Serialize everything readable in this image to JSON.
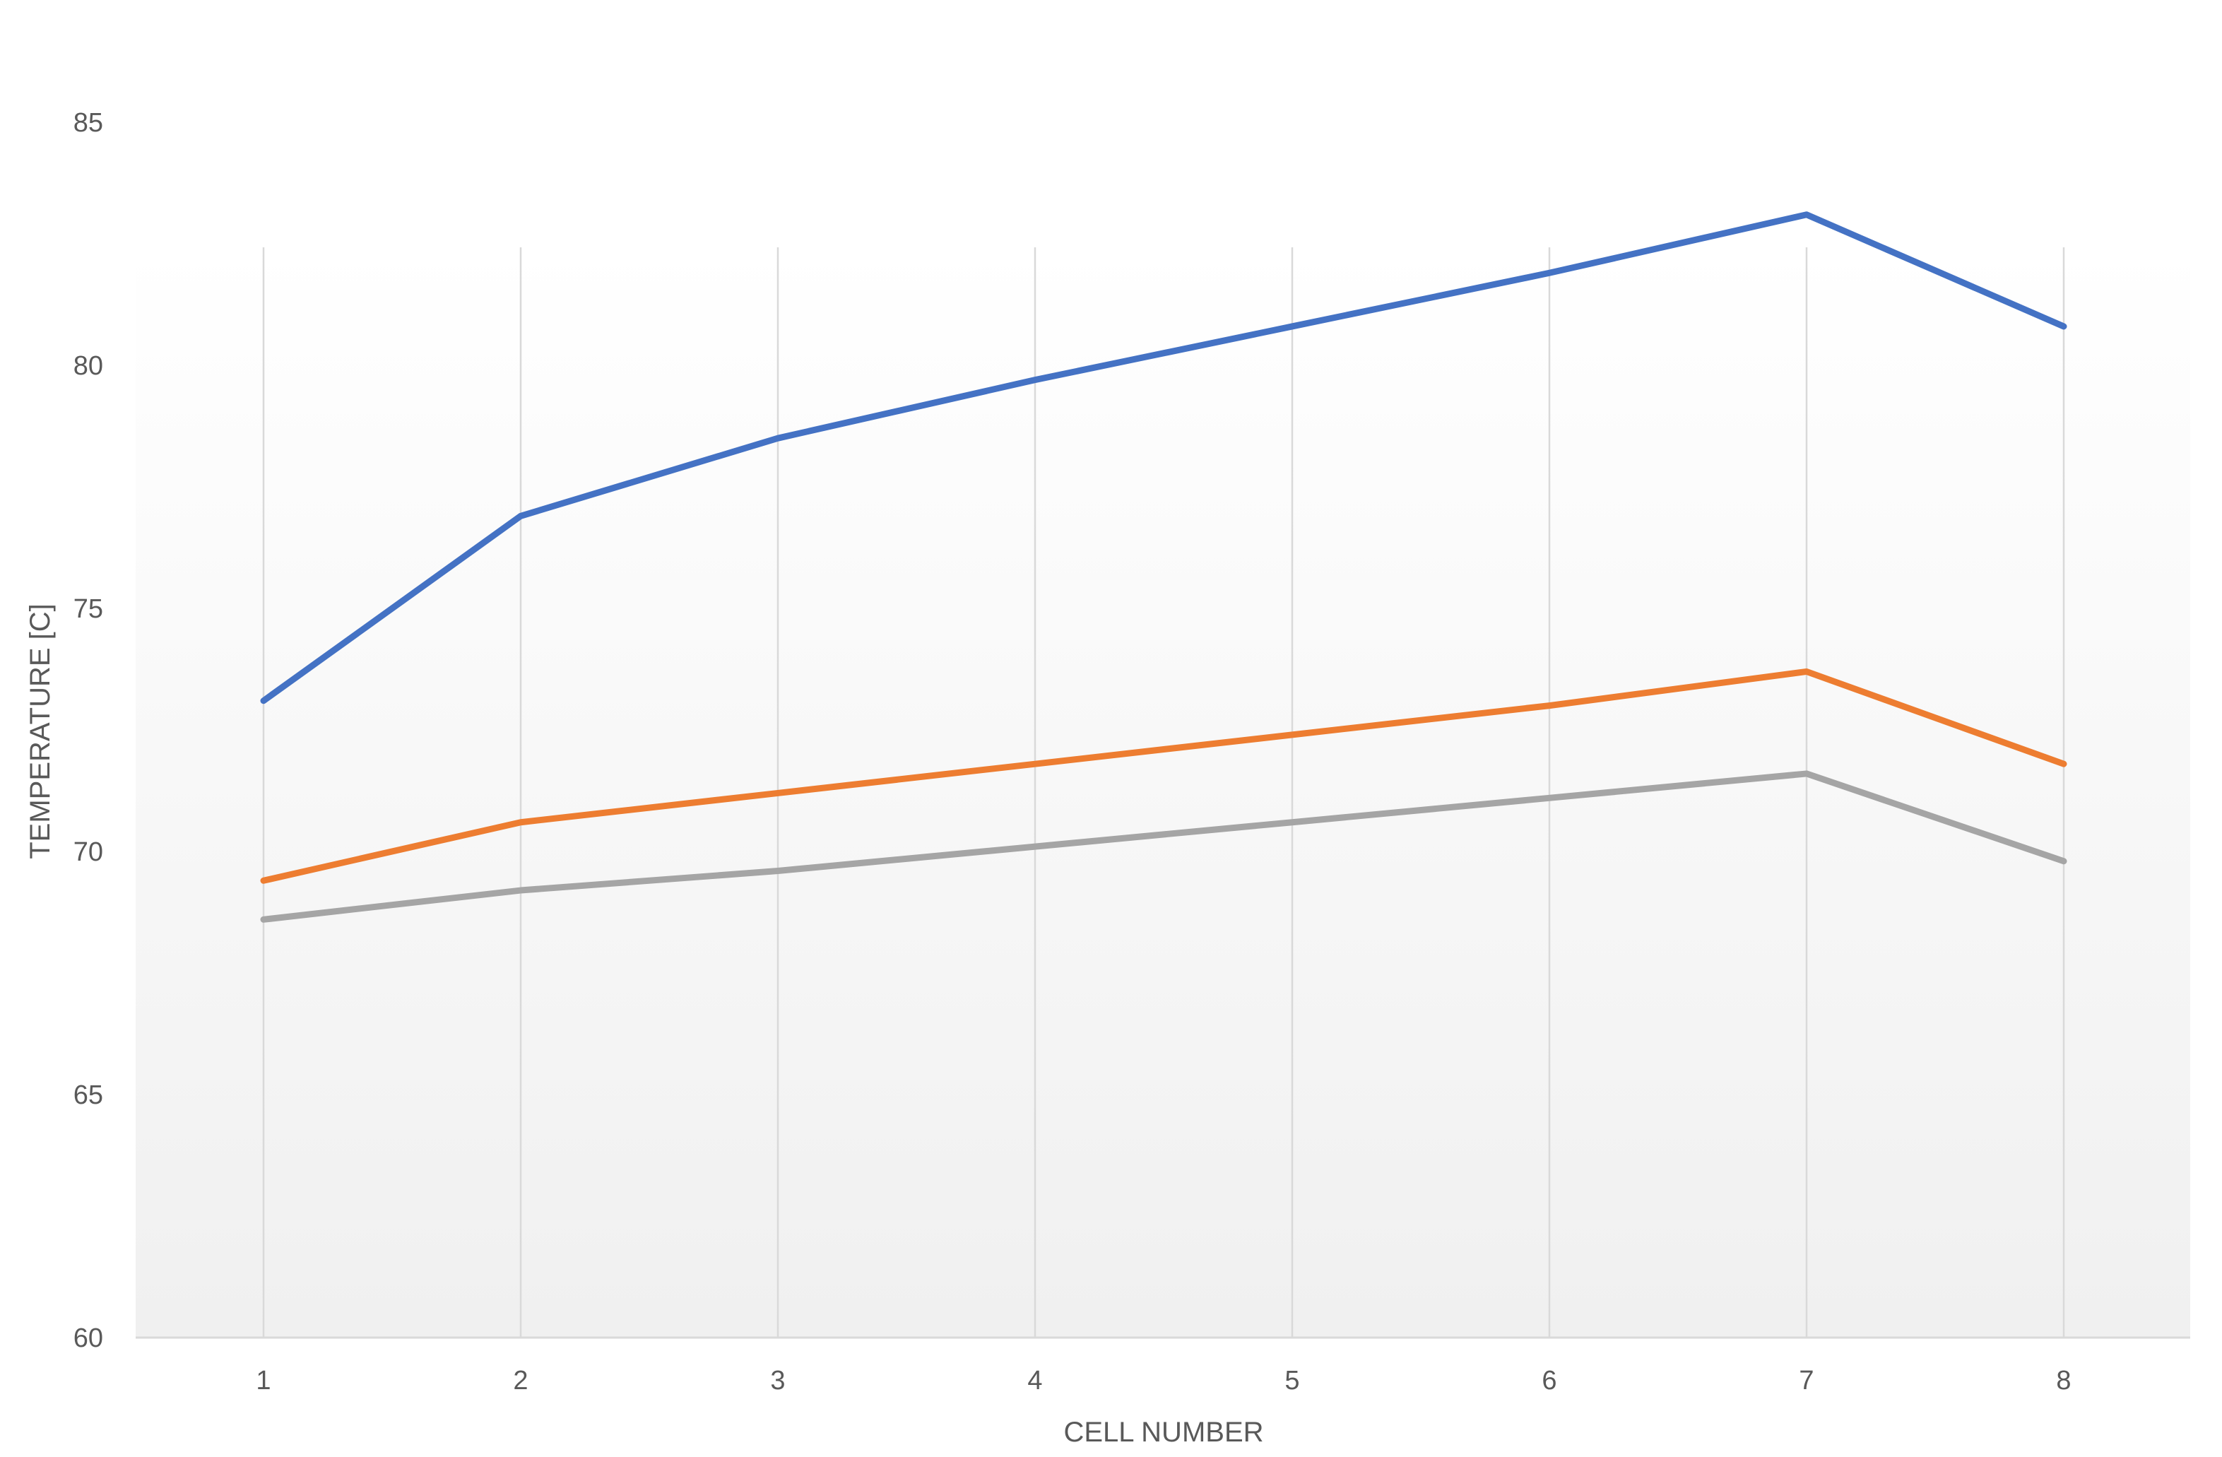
{
  "chart_data": {
    "type": "line",
    "title": "",
    "xlabel": "CELL NUMBER",
    "ylabel": "TEMPERATURE [C]",
    "categories": [
      "1",
      "2",
      "3",
      "4",
      "5",
      "6",
      "7",
      "8"
    ],
    "ylim": [
      60,
      85
    ],
    "yticks": [
      "60",
      "65",
      "70",
      "75",
      "80",
      "85"
    ],
    "grid": "vertical",
    "legend": "none",
    "series": [
      {
        "color": "#4472C4",
        "values": [
          73.1,
          76.9,
          78.5,
          79.7,
          80.8,
          81.9,
          83.1,
          80.8
        ]
      },
      {
        "color": "#ED7D31",
        "values": [
          69.4,
          70.6,
          71.2,
          71.8,
          72.4,
          73.0,
          73.7,
          71.8
        ]
      },
      {
        "color": "#A5A5A5",
        "values": [
          68.6,
          69.2,
          69.6,
          70.1,
          70.6,
          71.1,
          71.6,
          69.8
        ]
      }
    ]
  }
}
